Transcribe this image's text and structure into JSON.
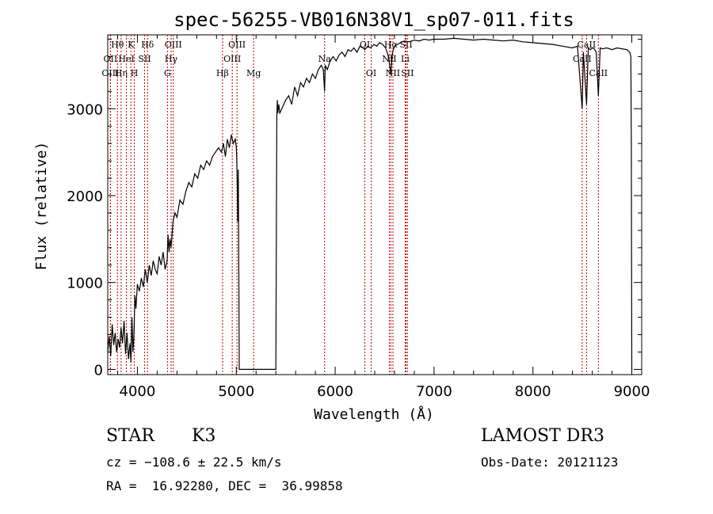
{
  "chart_data": {
    "type": "line",
    "title": "spec-56255-VB016N38V1_sp07-011.fits",
    "xlabel": "Wavelength (Å)",
    "ylabel": "Flux (relative)",
    "xlim": [
      3700,
      9100
    ],
    "ylim": [
      -60,
      3850
    ],
    "xticks": [
      {
        "value": 4000,
        "label": "4000"
      },
      {
        "value": 5000,
        "label": "5000"
      },
      {
        "value": 6000,
        "label": "6000"
      },
      {
        "value": 7000,
        "label": "7000"
      },
      {
        "value": 8000,
        "label": "8000"
      },
      {
        "value": 9000,
        "label": "9000"
      }
    ],
    "yticks": [
      {
        "value": 0,
        "label": "0"
      },
      {
        "value": 1000,
        "label": "1000"
      },
      {
        "value": 2000,
        "label": "2000"
      },
      {
        "value": 3000,
        "label": "3000"
      }
    ],
    "series": [
      {
        "color": "#000000",
        "x": [
          3700,
          3715,
          3730,
          3745,
          3760,
          3775,
          3790,
          3805,
          3820,
          3835,
          3850,
          3865,
          3880,
          3895,
          3910,
          3925,
          3935,
          3945,
          3955,
          3965,
          3975,
          3985,
          4000,
          4020,
          4040,
          4060,
          4080,
          4100,
          4120,
          4140,
          4160,
          4180,
          4200,
          4220,
          4240,
          4260,
          4280,
          4300,
          4310,
          4320,
          4330,
          4340,
          4360,
          4380,
          4400,
          4430,
          4460,
          4490,
          4520,
          4550,
          4580,
          4610,
          4640,
          4670,
          4700,
          4730,
          4760,
          4790,
          4820,
          4850,
          4870,
          4890,
          4910,
          4930,
          4950,
          4970,
          4990,
          5000,
          5005,
          5010,
          5015,
          5020,
          5025,
          5030,
          5050,
          5100,
          5200,
          5300,
          5400,
          5410,
          5415,
          5420,
          5425,
          5430,
          5440,
          5460,
          5480,
          5500,
          5530,
          5560,
          5590,
          5620,
          5650,
          5680,
          5710,
          5740,
          5770,
          5800,
          5830,
          5860,
          5880,
          5893,
          5900,
          5920,
          5950,
          5980,
          6010,
          6040,
          6070,
          6100,
          6130,
          6160,
          6190,
          6220,
          6250,
          6280,
          6300,
          6330,
          6360,
          6390,
          6420,
          6450,
          6480,
          6510,
          6540,
          6563,
          6580,
          6600,
          6630,
          6660,
          6700,
          6750,
          6800,
          6850,
          6900,
          6950,
          7000,
          7100,
          7200,
          7300,
          7400,
          7500,
          7600,
          7700,
          7800,
          7900,
          8000,
          8100,
          8200,
          8300,
          8400,
          8450,
          8498,
          8510,
          8542,
          8560,
          8580,
          8600,
          8620,
          8640,
          8662,
          8680,
          8700,
          8750,
          8800,
          8850,
          8900,
          8950,
          8980,
          8990,
          8995,
          9000
        ],
        "y": [
          200,
          380,
          150,
          520,
          280,
          420,
          200,
          350,
          250,
          480,
          300,
          560,
          180,
          420,
          120,
          300,
          80,
          600,
          200,
          400,
          850,
          700,
          980,
          900,
          1050,
          950,
          1150,
          1000,
          1200,
          1080,
          1250,
          1150,
          1100,
          1300,
          1200,
          1350,
          1150,
          1250,
          1550,
          1350,
          1500,
          1400,
          1700,
          1800,
          1750,
          1950,
          1900,
          2050,
          2150,
          2100,
          2250,
          2200,
          2350,
          2300,
          2400,
          2350,
          2450,
          2500,
          2550,
          2500,
          2600,
          2450,
          2650,
          2550,
          2700,
          2600,
          2650,
          2550,
          2400,
          2100,
          1700,
          2300,
          1200,
          0,
          0,
          0,
          0,
          0,
          0,
          2900,
          3100,
          2950,
          3000,
          3050,
          2950,
          3000,
          3050,
          3100,
          3150,
          3050,
          3250,
          3150,
          3300,
          3250,
          3350,
          3300,
          3400,
          3350,
          3450,
          3500,
          3450,
          3200,
          3500,
          3450,
          3550,
          3600,
          3550,
          3620,
          3650,
          3600,
          3680,
          3660,
          3700,
          3650,
          3720,
          3700,
          3680,
          3720,
          3700,
          3740,
          3720,
          3760,
          3740,
          3700,
          3600,
          3400,
          3650,
          3720,
          3740,
          3760,
          3780,
          3770,
          3790,
          3780,
          3800,
          3790,
          3800,
          3800,
          3810,
          3800,
          3790,
          3800,
          3790,
          3780,
          3790,
          3770,
          3760,
          3750,
          3740,
          3720,
          3700,
          3720,
          3000,
          3650,
          3050,
          3700,
          3680,
          3700,
          3690,
          3650,
          3150,
          3700,
          3690,
          3700,
          3680,
          3700,
          3690,
          3680,
          3650,
          3600,
          2600,
          0
        ]
      }
    ],
    "line_markers": [
      {
        "label": "Hθ",
        "row": 0,
        "x": 3798
      },
      {
        "label": "OII",
        "row": 1,
        "x": 3727
      },
      {
        "label": "OIII",
        "row": 2,
        "x": 3727
      },
      {
        "label": "K",
        "row": 0,
        "x": 3934
      },
      {
        "label": "HeI",
        "row": 1,
        "x": 3889
      },
      {
        "label": "Hη",
        "row": 2,
        "x": 3835
      },
      {
        "label": "H",
        "row": 2,
        "x": 3969
      },
      {
        "label": "Hδ",
        "row": 0,
        "x": 4102
      },
      {
        "label": "SII",
        "row": 1,
        "x": 4072
      },
      {
        "label": "OIII",
        "row": 0,
        "x": 4363
      },
      {
        "label": "Hγ",
        "row": 1,
        "x": 4341
      },
      {
        "label": "G",
        "row": 2,
        "x": 4304
      },
      {
        "label": "Hβ",
        "row": 2,
        "x": 4861
      },
      {
        "label": "OIII",
        "row": 0,
        "x": 5007
      },
      {
        "label": "OIII",
        "row": 1,
        "x": 4959
      },
      {
        "label": "Mg",
        "row": 2,
        "x": 5175
      },
      {
        "label": "Na",
        "row": 1,
        "x": 5893
      },
      {
        "label": "OI",
        "row": 0,
        "x": 6300
      },
      {
        "label": "OI",
        "row": 2,
        "x": 6364
      },
      {
        "label": "Hα",
        "row": 0,
        "x": 6563
      },
      {
        "label": "NII",
        "row": 1,
        "x": 6548
      },
      {
        "label": "NII",
        "row": 2,
        "x": 6584
      },
      {
        "label": "SII",
        "row": 0,
        "x": 6717
      },
      {
        "label": "Li",
        "row": 1,
        "x": 6708
      },
      {
        "label": "SII",
        "row": 2,
        "x": 6731
      },
      {
        "label": "CaII",
        "row": 0,
        "x": 8542
      },
      {
        "label": "CaII",
        "row": 1,
        "x": 8498
      },
      {
        "label": "CaII",
        "row": 2,
        "x": 8662
      }
    ]
  },
  "info": {
    "object_class": "STAR",
    "subclass": "K3",
    "survey": "LAMOST DR3",
    "cz": "cz = −108.6 ± 22.5 km/s",
    "obs_date": "Obs-Date: 20121123",
    "coords": "RA =  16.92280, DEC =  36.99858"
  }
}
